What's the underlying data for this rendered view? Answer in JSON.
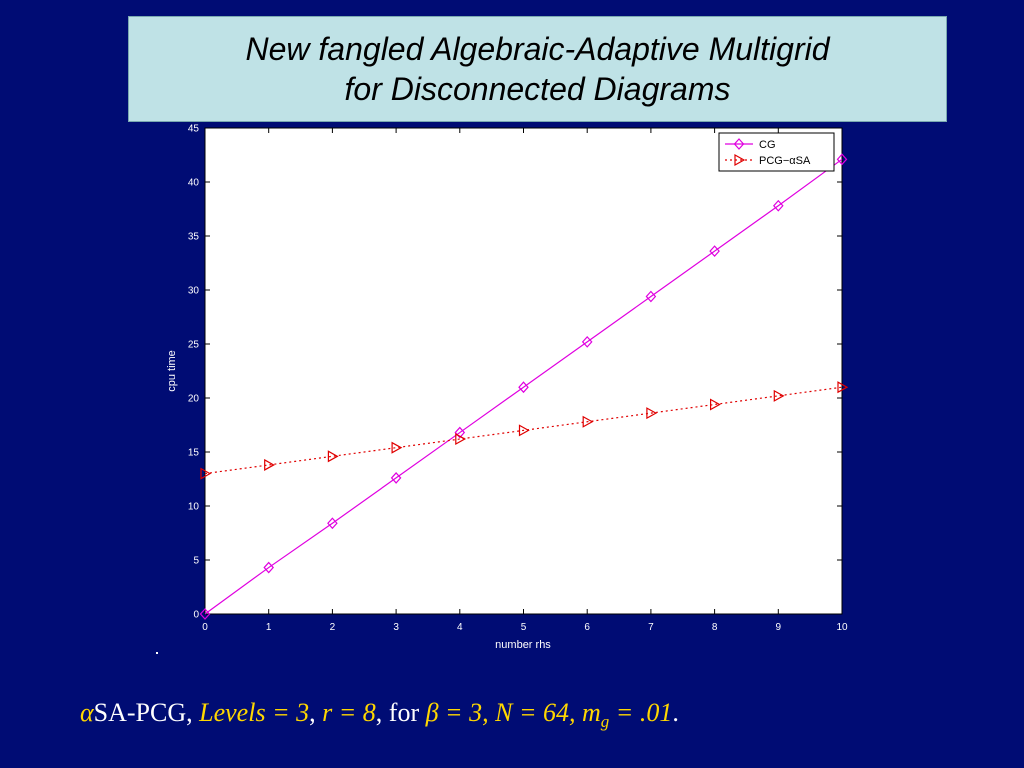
{
  "title": {
    "line1": "New fangled Algebraic-Adaptive Multigrid",
    "line2": "for Disconnected Diagrams"
  },
  "chart_data": {
    "type": "line",
    "xlabel": "number rhs",
    "ylabel": "cpu time",
    "xlim": [
      0,
      10
    ],
    "ylim": [
      0,
      45
    ],
    "xticks": [
      0,
      1,
      2,
      3,
      4,
      5,
      6,
      7,
      8,
      9,
      10
    ],
    "yticks": [
      0,
      5,
      10,
      15,
      20,
      25,
      30,
      35,
      40,
      45
    ],
    "grid": false,
    "legend_position": "top-right",
    "x": [
      0,
      1,
      2,
      3,
      4,
      5,
      6,
      7,
      8,
      9,
      10
    ],
    "series": [
      {
        "name": "CG",
        "color": "#e000e0",
        "marker": "diamond",
        "line": "solid",
        "values": [
          0.0,
          4.3,
          8.4,
          12.6,
          16.8,
          21.0,
          25.2,
          29.4,
          33.6,
          37.8,
          42.1
        ]
      },
      {
        "name": "PCG−αSA",
        "color": "#e00000",
        "marker": "triangle-right",
        "line": "dotted",
        "values": [
          13.0,
          13.8,
          14.6,
          15.4,
          16.2,
          17.0,
          17.8,
          18.6,
          19.4,
          20.2,
          21.0
        ]
      }
    ]
  },
  "caption": {
    "part1": "α",
    "part2": "SA-PCG, ",
    "part3": "Levels = 3",
    "part4": ", ",
    "part5": "r = 8",
    "part6": ", for ",
    "part7": "β = 3, N = 64, m",
    "part8": "g",
    "part9": " = .01",
    "part10": "."
  },
  "colors": {
    "background": "#000c74",
    "title_box": "#bfe2e6",
    "caption_math": "#ffd700"
  }
}
